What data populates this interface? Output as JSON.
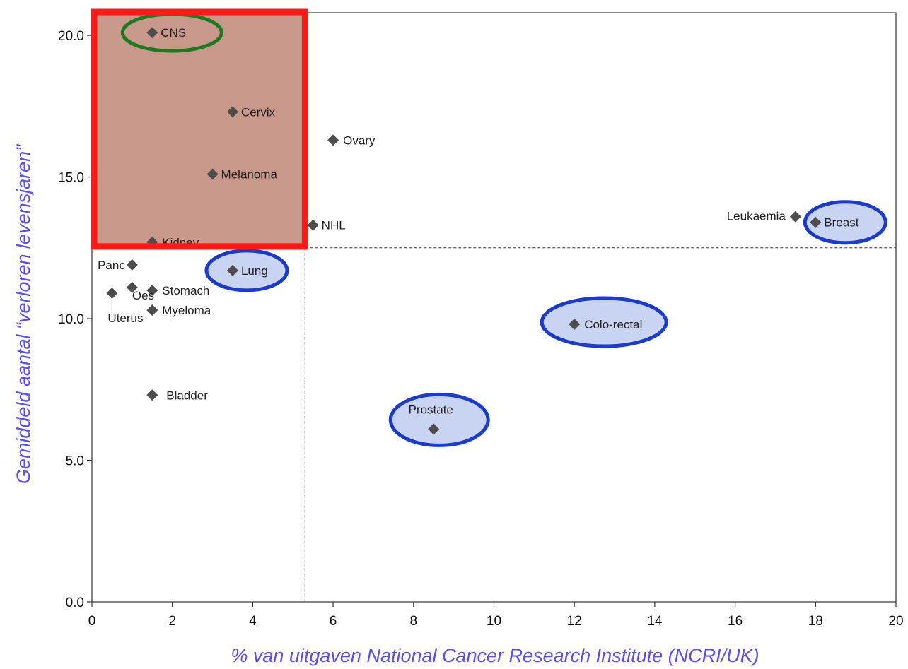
{
  "chart_data": {
    "type": "scatter",
    "xlabel": "% van uitgaven National Cancer Research Institute (NCRI/UK)",
    "ylabel": "Gemiddeld aantal “verloren levensjaren”",
    "xlim": [
      0,
      20
    ],
    "ylim": [
      0,
      20.8
    ],
    "x_ticks": [
      "0",
      "2",
      "4",
      "6",
      "8",
      "10",
      "12",
      "14",
      "16",
      "18",
      "20"
    ],
    "y_ticks": [
      "0.0",
      "5.0",
      "10.0",
      "15.0",
      "20.0"
    ],
    "reference_lines": {
      "x": 5.3,
      "y": 12.5
    },
    "highlight_region": {
      "x": [
        0,
        5.3
      ],
      "y": [
        12.5,
        20.8
      ],
      "color": "#c8998a",
      "border_color": "#ff1a1a"
    },
    "points": [
      {
        "label": "CNS",
        "x": 1.5,
        "y": 20.1,
        "highlight": "green"
      },
      {
        "label": "Cervix",
        "x": 3.5,
        "y": 17.3
      },
      {
        "label": "Ovary",
        "x": 6.0,
        "y": 16.3
      },
      {
        "label": "Melanoma",
        "x": 3.0,
        "y": 15.1
      },
      {
        "label": "NHL",
        "x": 5.5,
        "y": 13.3
      },
      {
        "label": "Kidney",
        "x": 1.5,
        "y": 12.7
      },
      {
        "label": "Leukaemia",
        "x": 17.5,
        "y": 13.6
      },
      {
        "label": "Breast",
        "x": 18.0,
        "y": 13.4,
        "highlight": "blue"
      },
      {
        "label": "Panc",
        "x": 1.0,
        "y": 11.9
      },
      {
        "label": "Lung",
        "x": 3.5,
        "y": 11.7,
        "highlight": "blue"
      },
      {
        "label": "Stomach",
        "x": 1.5,
        "y": 11.0
      },
      {
        "label": "Oes",
        "x": 1.0,
        "y": 11.1
      },
      {
        "label": "Uterus",
        "x": 0.5,
        "y": 10.9
      },
      {
        "label": "Myeloma",
        "x": 1.5,
        "y": 10.3
      },
      {
        "label": "Colo-rectal",
        "x": 12.0,
        "y": 9.8,
        "highlight": "blue"
      },
      {
        "label": "Bladder",
        "x": 1.5,
        "y": 7.3
      },
      {
        "label": "Prostate",
        "x": 8.5,
        "y": 6.1,
        "highlight": "blue"
      }
    ],
    "colors": {
      "marker": "#4d4d4d",
      "axis_title": "#5a4cff",
      "highlight_blue_fill": "#c9d3f2",
      "highlight_blue_stroke": "#1a3bcc",
      "highlight_green_stroke": "#1f7a1f"
    }
  }
}
